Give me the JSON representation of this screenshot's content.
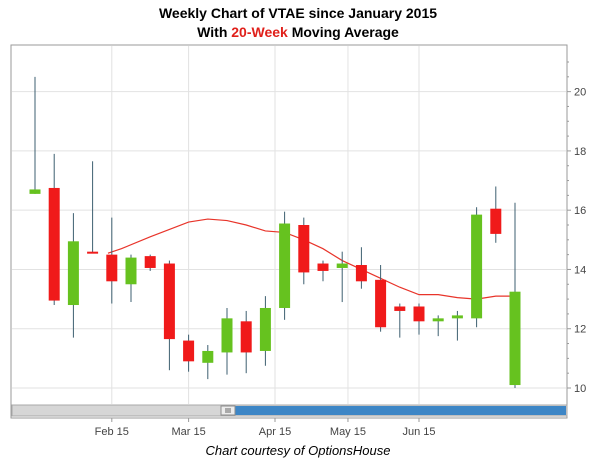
{
  "header": {
    "title_line1": "Weekly Chart of VTAE since January 2015",
    "title_line2_prefix": "With ",
    "title_line2_highlight": "20-Week",
    "title_line2_suffix": " Moving Average"
  },
  "footer": {
    "credit": "Chart courtesy of OptionsHouse"
  },
  "colors": {
    "up": "#66c21f",
    "down": "#f01a1a",
    "wick": "#3d5f70",
    "moving_average": "#e8342a",
    "grid": "#e2e2e2",
    "scrollbar_thumb": "#3d86c6"
  },
  "chart_data": {
    "type": "candlestick",
    "title": "Weekly Chart of VTAE since January 2015",
    "subtitle": "With 20-Week Moving Average",
    "xlabel": "",
    "ylabel": "",
    "ylim": [
      9.5,
      21.3
    ],
    "y_ticks": [
      "10",
      "12",
      "14",
      "16",
      "18",
      "20"
    ],
    "x_ticks": [
      {
        "label": "Feb 15",
        "index": 4
      },
      {
        "label": "Mar 15",
        "index": 8
      },
      {
        "label": "Apr 15",
        "index": 12.5
      },
      {
        "label": "May 15",
        "index": 16.3
      },
      {
        "label": "Jun 15",
        "index": 20
      }
    ],
    "grid": true,
    "candles": [
      {
        "o": 16.55,
        "h": 20.5,
        "l": 16.55,
        "c": 16.7
      },
      {
        "o": 16.75,
        "h": 17.9,
        "l": 12.8,
        "c": 12.95
      },
      {
        "o": 12.8,
        "h": 15.9,
        "l": 11.7,
        "c": 14.95
      },
      {
        "o": 14.6,
        "h": 17.65,
        "l": 14.55,
        "c": 14.55
      },
      {
        "o": 14.5,
        "h": 15.75,
        "l": 12.85,
        "c": 13.6
      },
      {
        "o": 13.5,
        "h": 14.5,
        "l": 12.9,
        "c": 14.4
      },
      {
        "o": 14.45,
        "h": 14.5,
        "l": 13.95,
        "c": 14.05
      },
      {
        "o": 14.2,
        "h": 14.3,
        "l": 10.6,
        "c": 11.65
      },
      {
        "o": 11.6,
        "h": 11.8,
        "l": 10.55,
        "c": 10.9
      },
      {
        "o": 10.85,
        "h": 11.45,
        "l": 10.3,
        "c": 11.25
      },
      {
        "o": 11.2,
        "h": 12.7,
        "l": 10.45,
        "c": 12.35
      },
      {
        "o": 12.25,
        "h": 12.6,
        "l": 10.5,
        "c": 11.2
      },
      {
        "o": 11.25,
        "h": 13.1,
        "l": 10.75,
        "c": 12.7
      },
      {
        "o": 12.7,
        "h": 15.95,
        "l": 12.3,
        "c": 15.55
      },
      {
        "o": 15.5,
        "h": 15.75,
        "l": 13.5,
        "c": 13.9
      },
      {
        "o": 14.2,
        "h": 14.3,
        "l": 13.6,
        "c": 13.95
      },
      {
        "o": 14.05,
        "h": 14.6,
        "l": 12.9,
        "c": 14.2
      },
      {
        "o": 14.15,
        "h": 14.75,
        "l": 13.35,
        "c": 13.6
      },
      {
        "o": 13.65,
        "h": 14.15,
        "l": 11.9,
        "c": 12.05
      },
      {
        "o": 12.75,
        "h": 12.85,
        "l": 11.7,
        "c": 12.6
      },
      {
        "o": 12.75,
        "h": 12.85,
        "l": 11.8,
        "c": 12.25
      },
      {
        "o": 12.25,
        "h": 12.45,
        "l": 11.75,
        "c": 12.35
      },
      {
        "o": 12.35,
        "h": 12.6,
        "l": 11.6,
        "c": 12.45
      },
      {
        "o": 12.35,
        "h": 16.1,
        "l": 12.05,
        "c": 15.85
      },
      {
        "o": 16.05,
        "h": 16.8,
        "l": 14.9,
        "c": 15.2
      },
      {
        "o": 10.1,
        "h": 16.25,
        "l": 10.0,
        "c": 13.25
      }
    ],
    "moving_average": {
      "name": "20-Week Moving Average",
      "x": [
        3.8,
        4.5,
        6,
        8,
        9,
        10,
        11,
        12,
        13,
        14,
        15,
        16,
        17,
        18,
        19,
        20,
        21,
        22,
        23,
        24,
        25
      ],
      "y": [
        14.55,
        14.7,
        15.1,
        15.6,
        15.7,
        15.65,
        15.5,
        15.3,
        15.25,
        15.0,
        14.7,
        14.3,
        14.0,
        13.7,
        13.4,
        13.15,
        13.15,
        13.05,
        13.0,
        13.1,
        13.1
      ]
    }
  }
}
